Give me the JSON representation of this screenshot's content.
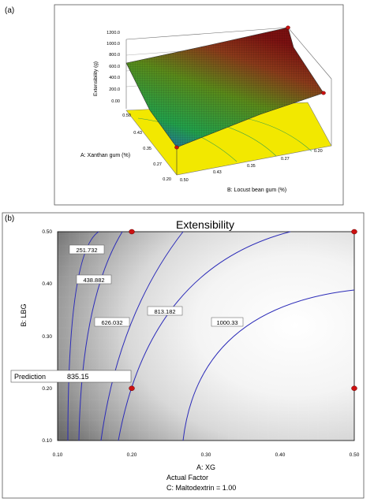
{
  "panel_a": {
    "label": "(a)",
    "z_axis_label": "Extensibility (g)",
    "z_ticks": [
      "0.00",
      "200.0",
      "400.0",
      "600.0",
      "800.0",
      "1000.0",
      "1200.0"
    ],
    "x_axis_label": "A: Xanthan gum (%)",
    "x_ticks": [
      "0.20",
      "0.27",
      "0.35",
      "0.43",
      "0.50"
    ],
    "y_axis_label": "B: Locust bean gum  (%)",
    "y_ticks": [
      "0.50",
      "0.43",
      "0.35",
      "0.27",
      "0.20"
    ],
    "colors": {
      "low": "#1a3fbf",
      "mid": "#1f8a1f",
      "high": "#8a1a1a",
      "floor": "#f2e800",
      "marker": "#cc1111"
    }
  },
  "panel_b": {
    "label": "(b)",
    "title": "Extensibility",
    "x_axis_label": "A: XG",
    "y_axis_label": "B: LBG",
    "x_ticks": [
      "0.10",
      "0.20",
      "0.30",
      "0.40",
      "0.50"
    ],
    "y_ticks": [
      "0.10",
      "0.20",
      "0.30",
      "0.40",
      "0.50"
    ],
    "actual_factor_label": "Actual Factor",
    "actual_factor_value": "C: Maltodextrin = 1.00",
    "prediction_label": "Prediction",
    "prediction_value": "835.15",
    "colors": {
      "contour": "#2b2bb8",
      "marker": "#cc1111"
    }
  },
  "chart_data": [
    {
      "type": "surface",
      "title": "",
      "xlabel": "A: Xanthan gum (%)",
      "ylabel": "B: Locust bean gum  (%)",
      "zlabel": "Extensibility (g)",
      "xlim": [
        0.2,
        0.5
      ],
      "ylim": [
        0.2,
        0.5
      ],
      "zlim": [
        0,
        1200
      ],
      "design_points": [
        [
          0.2,
          0.2
        ],
        [
          0.5,
          0.5
        ],
        [
          0.5,
          0.2
        ]
      ]
    },
    {
      "type": "contour",
      "title": "Extensibility",
      "xlabel": "A: XG",
      "ylabel": "B: LBG",
      "xlim": [
        0.1,
        0.5
      ],
      "ylim": [
        0.1,
        0.5
      ],
      "contour_levels": [
        "251.732",
        "438.882",
        "626.032",
        "813.182",
        "1000.33"
      ],
      "prediction": {
        "x": 0.2,
        "y": 0.2,
        "value": "835.15"
      },
      "design_points": [
        [
          0.2,
          0.5
        ],
        [
          0.5,
          0.5
        ],
        [
          0.2,
          0.2
        ],
        [
          0.5,
          0.2
        ]
      ]
    }
  ]
}
